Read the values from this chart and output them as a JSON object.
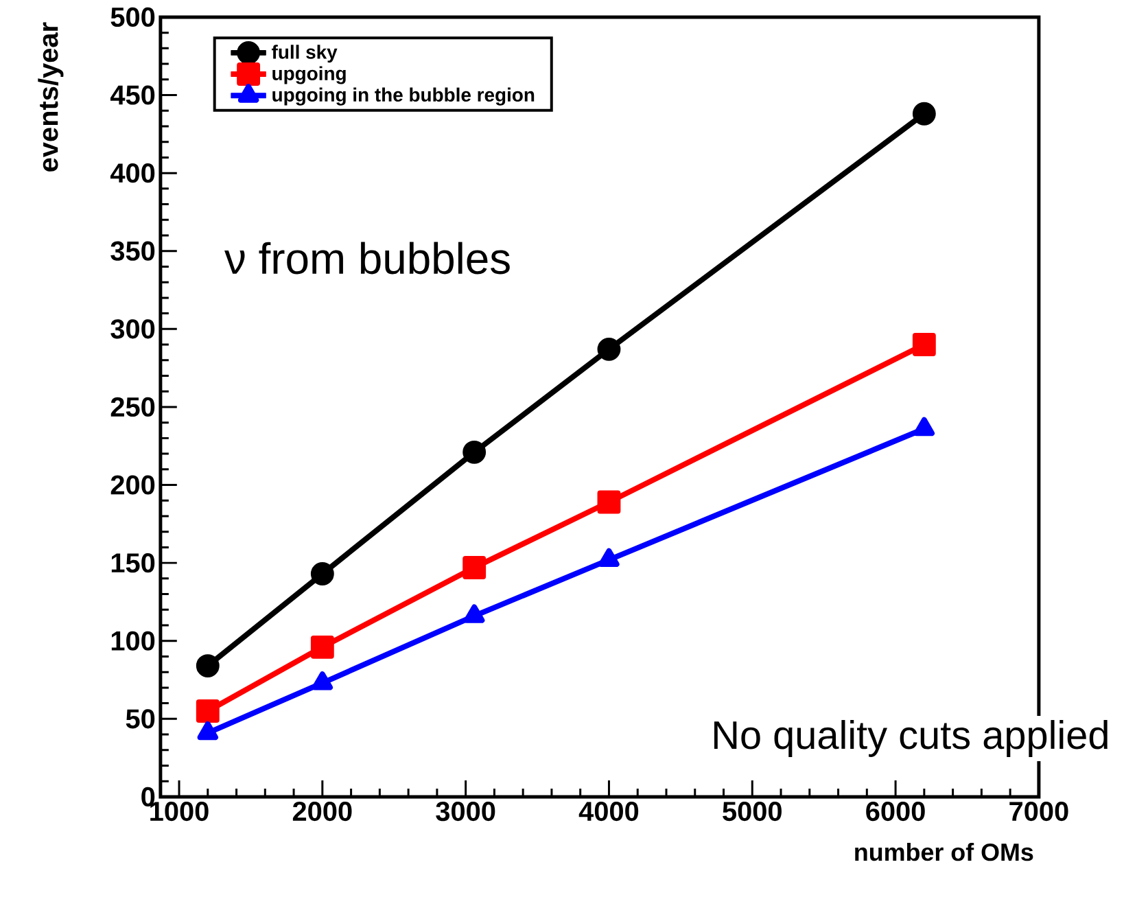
{
  "chart_data": {
    "type": "line",
    "xlabel": "number of OMs",
    "ylabel": "events/year",
    "xlim": [
      870,
      7000
    ],
    "ylim": [
      0,
      500
    ],
    "xticks": [
      1000,
      2000,
      3000,
      4000,
      5000,
      6000,
      7000
    ],
    "yticks": [
      0,
      50,
      100,
      150,
      200,
      250,
      300,
      350,
      400,
      450,
      500
    ],
    "x": [
      1200,
      2000,
      3060,
      4000,
      6200
    ],
    "series": [
      {
        "name": "full sky",
        "color": "#000000",
        "marker": "circle",
        "values": [
          84,
          143,
          221,
          287,
          438
        ]
      },
      {
        "name": "upgoing",
        "color": "#ff0000",
        "marker": "square",
        "values": [
          55,
          96,
          147,
          189,
          290
        ]
      },
      {
        "name": "upgoing in the bubble region",
        "color": "#0000ff",
        "marker": "triangle",
        "values": [
          41,
          73,
          116,
          152,
          236
        ]
      }
    ],
    "legend": "top left",
    "grid": false,
    "annotations": [
      "ν from bubbles",
      "No quality cuts applied"
    ]
  }
}
